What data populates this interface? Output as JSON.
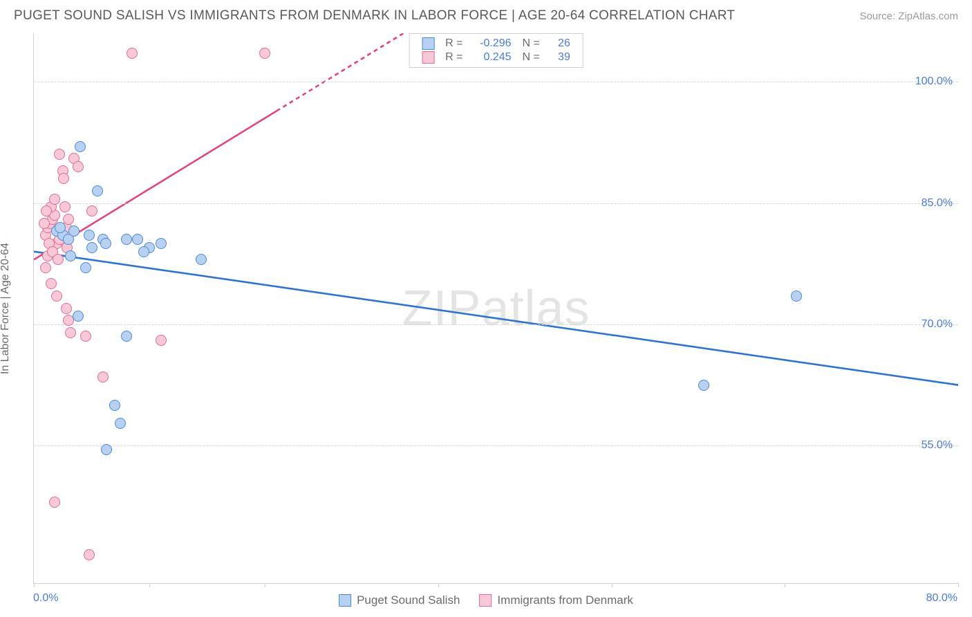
{
  "header": {
    "title": "PUGET SOUND SALISH VS IMMIGRANTS FROM DENMARK IN LABOR FORCE | AGE 20-64 CORRELATION CHART",
    "source": "Source: ZipAtlas.com"
  },
  "chart": {
    "type": "scatter",
    "ylabel": "In Labor Force | Age 20-64",
    "xlim": [
      0,
      80
    ],
    "ylim": [
      38,
      106
    ],
    "xticks": [
      0,
      10,
      20,
      35,
      50,
      65,
      80
    ],
    "yticks": [
      55,
      70,
      85,
      100
    ],
    "ytick_labels": [
      "55.0%",
      "70.0%",
      "85.0%",
      "100.0%"
    ],
    "xtick_labels": {
      "0": "0.0%",
      "80": "80.0%"
    },
    "grid_color": "#d8d8d8",
    "axis_color": "#cfcfcf",
    "background_color": "#ffffff",
    "marker_radius": 8,
    "marker_stroke_width": 1.2,
    "line_width": 2.6,
    "series": [
      {
        "name": "Puget Sound Salish",
        "color_fill": "#b9d1f0",
        "color_stroke": "#4a8ad4",
        "line_color": "#2f73d1",
        "R": "-0.296",
        "N": "26",
        "regression": {
          "x1": 0,
          "y1": 79.0,
          "x2": 80,
          "y2": 62.5,
          "dash_from_x": null
        },
        "points": [
          [
            2.0,
            81.5
          ],
          [
            2.5,
            81.0
          ],
          [
            2.3,
            82.0
          ],
          [
            3.0,
            80.5
          ],
          [
            3.5,
            81.5
          ],
          [
            4.0,
            92.0
          ],
          [
            5.5,
            86.5
          ],
          [
            6.0,
            80.5
          ],
          [
            6.2,
            80.0
          ],
          [
            4.5,
            77.0
          ],
          [
            3.8,
            71.0
          ],
          [
            8.0,
            80.5
          ],
          [
            9.0,
            80.5
          ],
          [
            10.0,
            79.5
          ],
          [
            11.0,
            80.0
          ],
          [
            14.5,
            78.0
          ],
          [
            8.0,
            68.5
          ],
          [
            7.0,
            60.0
          ],
          [
            7.5,
            57.8
          ],
          [
            6.3,
            54.5
          ],
          [
            58.0,
            62.5
          ],
          [
            66.0,
            73.5
          ],
          [
            3.2,
            78.5
          ],
          [
            4.8,
            81.0
          ],
          [
            5.0,
            79.5
          ],
          [
            9.5,
            79.0
          ]
        ]
      },
      {
        "name": "Immigrants from Denmark",
        "color_fill": "#f7c9d6",
        "color_stroke": "#e46a93",
        "line_color": "#e3447c",
        "R": "0.245",
        "N": "39",
        "regression": {
          "x1": 0,
          "y1": 78.0,
          "x2": 32,
          "y2": 106.0,
          "dash_from_x": 21.0
        },
        "points": [
          [
            1.0,
            81.0
          ],
          [
            1.2,
            82.0
          ],
          [
            1.4,
            82.5
          ],
          [
            1.6,
            83.0
          ],
          [
            1.8,
            83.5
          ],
          [
            2.0,
            80.0
          ],
          [
            2.2,
            80.5
          ],
          [
            2.4,
            81.5
          ],
          [
            2.8,
            82.0
          ],
          [
            3.0,
            83.0
          ],
          [
            1.5,
            84.5
          ],
          [
            1.8,
            85.5
          ],
          [
            2.5,
            89.0
          ],
          [
            3.5,
            90.5
          ],
          [
            3.8,
            89.5
          ],
          [
            5.0,
            84.0
          ],
          [
            8.5,
            103.5
          ],
          [
            20.0,
            103.5
          ],
          [
            1.2,
            78.5
          ],
          [
            1.0,
            77.0
          ],
          [
            1.5,
            75.0
          ],
          [
            2.0,
            73.5
          ],
          [
            2.8,
            72.0
          ],
          [
            3.0,
            70.5
          ],
          [
            3.2,
            69.0
          ],
          [
            4.5,
            68.5
          ],
          [
            6.0,
            63.5
          ],
          [
            11.0,
            68.0
          ],
          [
            1.8,
            48.0
          ],
          [
            4.8,
            41.5
          ],
          [
            2.2,
            91.0
          ],
          [
            2.6,
            88.0
          ],
          [
            1.3,
            80.0
          ],
          [
            1.6,
            79.0
          ],
          [
            2.1,
            78.0
          ],
          [
            2.9,
            79.5
          ],
          [
            0.9,
            82.5
          ],
          [
            1.1,
            84.0
          ],
          [
            2.7,
            84.5
          ]
        ]
      }
    ],
    "watermark": {
      "text_bold": "ZIP",
      "text_light": "atlas"
    },
    "legend_bottom": [
      {
        "label": "Puget Sound Salish",
        "fill": "#b9d1f0",
        "stroke": "#4a8ad4"
      },
      {
        "label": "Immigrants from Denmark",
        "fill": "#f7c9d6",
        "stroke": "#e46a93"
      }
    ]
  }
}
